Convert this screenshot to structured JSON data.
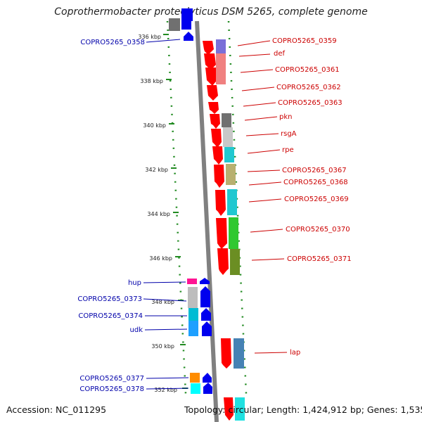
{
  "title": "Coprothermobacter proteolyticus DSM 5265, complete genome",
  "footer": {
    "accession": "Accession: NC_011295",
    "topology": "Topology: circular; Length: 1,424,912 bp; Genes: 1,535"
  },
  "colors": {
    "forward": "#ff0000",
    "reverse": "#0000ee",
    "backbone": "#808080",
    "dots": "#228b22",
    "label_right": "#cc0000",
    "label_left": "#0000aa"
  },
  "ticks": [
    "336 kbp",
    "338 kbp",
    "340 kbp",
    "342 kbp",
    "344 kbp",
    "346 kbp",
    "348 kbp",
    "350 kbp",
    "352 kbp"
  ],
  "right_labels": [
    "COPRO5265_0359",
    "def",
    "COPRO5265_0361",
    "COPRO5265_0362",
    "COPRO5265_0363",
    "pkn",
    "rsgA",
    "rpe",
    "COPRO5265_0367",
    "COPRO5265_0368",
    "COPRO5265_0369",
    "COPRO5265_0370",
    "COPRO5265_0371",
    "lap"
  ],
  "left_labels": [
    "COPRO5265_0358",
    "hup",
    "COPRO5265_0373",
    "COPRO5265_0374",
    "udk",
    "COPRO5265_0377",
    "COPRO5265_0378"
  ]
}
